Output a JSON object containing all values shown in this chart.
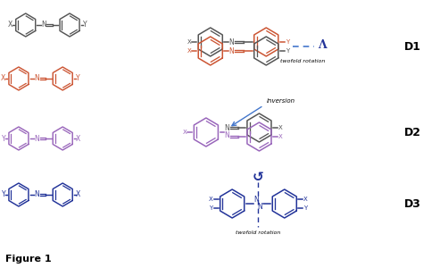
{
  "bg_color": "#ffffff",
  "color_gray": "#555555",
  "color_red": "#cc5533",
  "color_purple": "#9966bb",
  "color_blue": "#4477cc",
  "color_darkblue": "#223399",
  "label_D1": "D1",
  "label_D2": "D2",
  "label_D3": "D3",
  "text_twofold1": "twofold rotation",
  "text_twofold2": "twofold rotation",
  "text_inversion": "inversion",
  "figure_label": "Figure 1"
}
